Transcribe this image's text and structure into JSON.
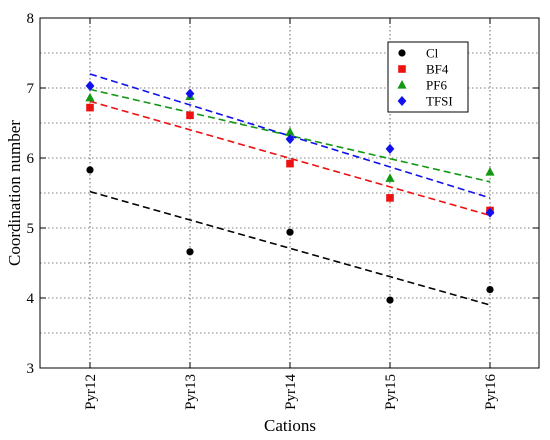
{
  "chart_data": {
    "type": "scatter",
    "xlabel": "Cations",
    "ylabel": "Coordination number",
    "categories": [
      "Pyr12",
      "Pyr13",
      "Pyr14",
      "Pyr15",
      "Pyr16"
    ],
    "ylim": [
      3,
      8
    ],
    "yticks": [
      "3",
      "4",
      "5",
      "6",
      "7",
      "8"
    ],
    "grid": true,
    "legend_position": "top-right",
    "series": [
      {
        "name": "Cl",
        "color": "#000000",
        "marker": "circle",
        "values": [
          5.83,
          4.66,
          4.94,
          3.97,
          4.12
        ],
        "fit": [
          5.52,
          3.9
        ]
      },
      {
        "name": "BF4",
        "color": "#ee1111",
        "marker": "square",
        "values": [
          6.72,
          6.61,
          5.92,
          5.43,
          5.25
        ],
        "fit": [
          6.81,
          5.18
        ]
      },
      {
        "name": "PF6",
        "color": "#119911",
        "marker": "triangle",
        "values": [
          6.86,
          6.88,
          6.37,
          5.71,
          5.8
        ],
        "fit": [
          6.98,
          5.66
        ]
      },
      {
        "name": "TFSI",
        "color": "#1111ee",
        "marker": "diamond",
        "values": [
          7.03,
          6.92,
          6.27,
          6.13,
          5.22
        ],
        "fit": [
          7.2,
          5.43
        ]
      }
    ]
  }
}
